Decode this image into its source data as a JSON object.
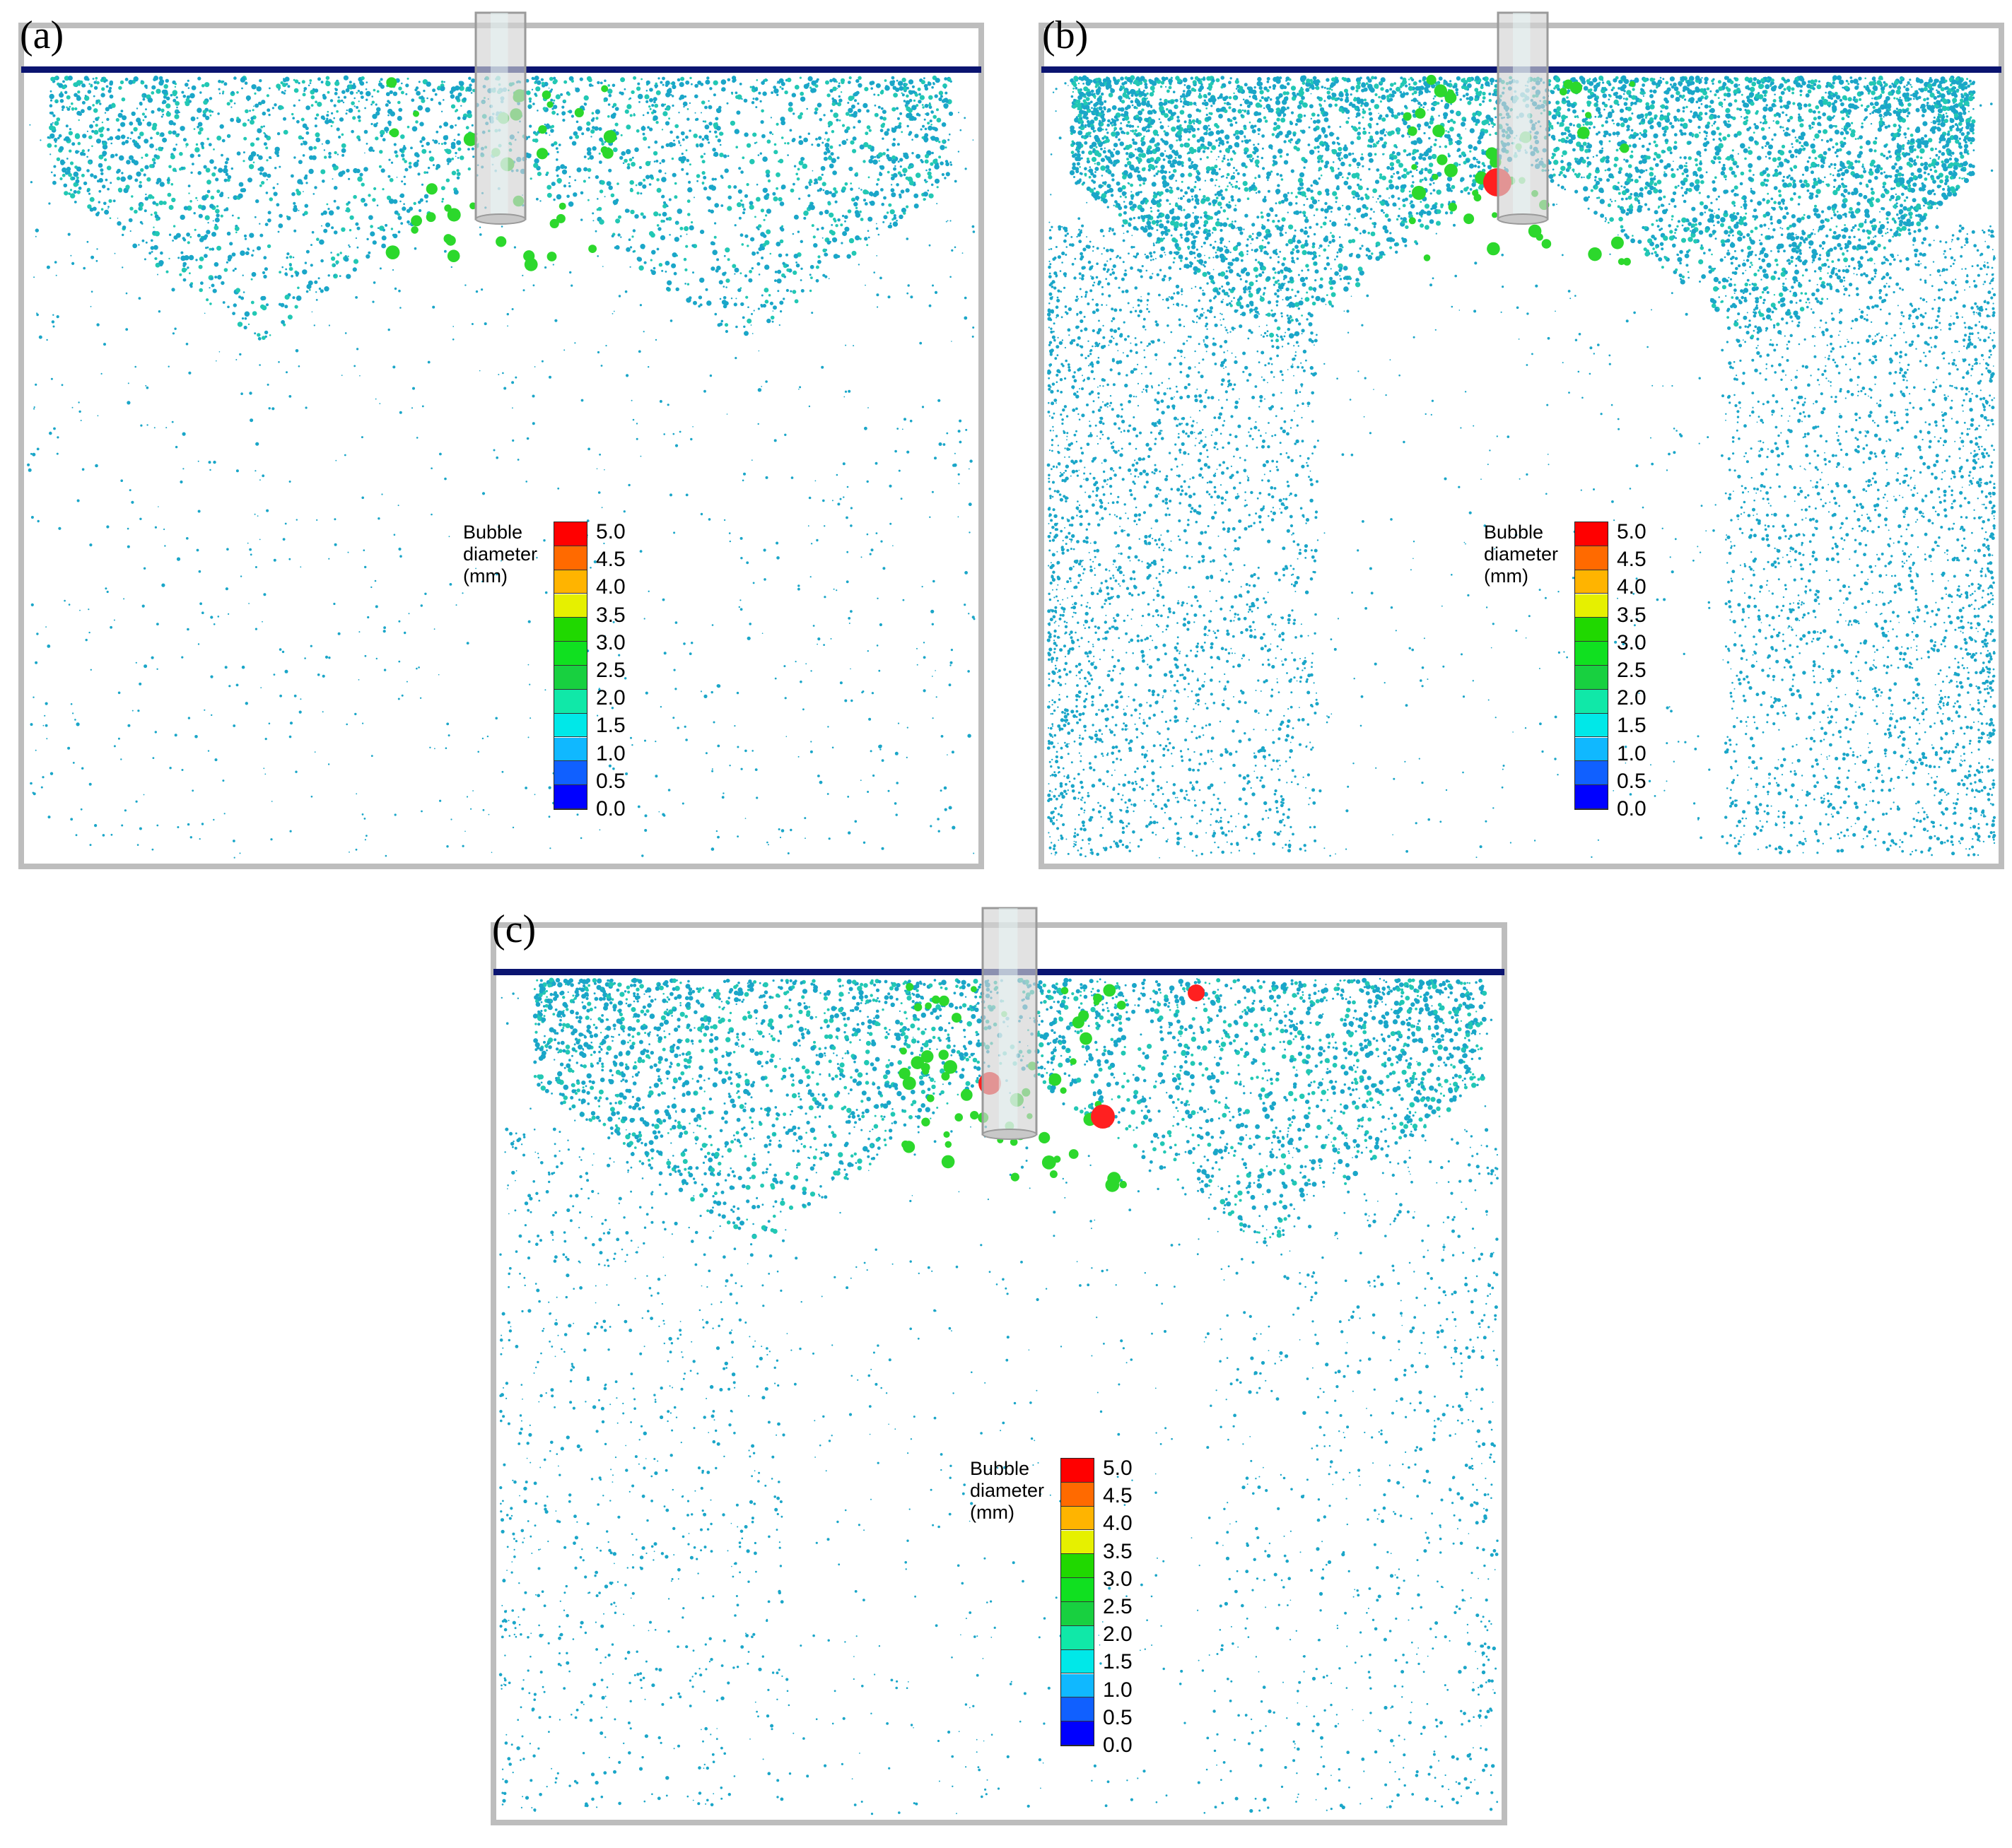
{
  "panels": [
    {
      "label": "(a)",
      "density": "low"
    },
    {
      "label": "(b)",
      "density": "high"
    },
    {
      "label": "(c)",
      "density": "medium"
    }
  ],
  "legend": {
    "title_line1": "Bubble",
    "title_line2": "diameter",
    "title_line3": "(mm)",
    "ticks": [
      "5.0",
      "4.5",
      "4.0",
      "3.5",
      "3.0",
      "2.5",
      "2.0",
      "1.5",
      "1.0",
      "0.5",
      "0.0"
    ],
    "colors": [
      "#ff0000",
      "#ff6a00",
      "#ffb400",
      "#e6f000",
      "#20d800",
      "#10e020",
      "#18d040",
      "#10e8a8",
      "#00e8e8",
      "#10b8ff",
      "#1060ff",
      "#0000ff"
    ]
  },
  "colors": {
    "frame": "#bdbdbd",
    "surface": "#0a1470",
    "nozzle": "#d2d2d2",
    "bubble_small": "#1aa6c8",
    "bubble_mid": "#22c8b4",
    "bubble_large": "#2cd82c",
    "bubble_xl": "#ff2020"
  }
}
